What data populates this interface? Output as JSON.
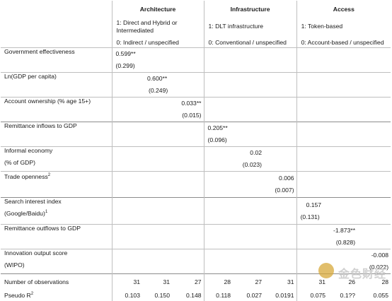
{
  "groups": [
    {
      "title": "Architecture",
      "line1": "1: Direct and Hybrid or Intermediated",
      "line0": "0: Indirect / unspecified"
    },
    {
      "title": "Infrastructure",
      "line1": "1: DLT infrastructure",
      "line0": "0: Conventional / unspecified"
    },
    {
      "title": "Access",
      "line1": "1: Token-based",
      "line0": "0: Account-based / unspecified"
    }
  ],
  "rows": [
    {
      "label": "Government effectiveness",
      "label2": "",
      "coef": "0.599**",
      "se": "(0.299)"
    },
    {
      "label": "Ln(GDP per capita)",
      "label2": "",
      "coef": "0.600**",
      "se": "(0.249)"
    },
    {
      "label": "Account ownership (% age 15+)",
      "label2": "",
      "coef": "0.033**",
      "se": "(0.015)"
    },
    {
      "label": "Remittance inflows to GDP",
      "label2": "",
      "coef": "0.205**",
      "se": "(0.096)"
    },
    {
      "label": "Informal economy",
      "label2": "(% of GDP)",
      "coef": "0.02",
      "se": "(0.023)"
    },
    {
      "label": "Trade openness",
      "label_sup": "2",
      "label2": "",
      "coef": "0.006",
      "se": "(0.007)"
    },
    {
      "label": "Search interest index",
      "label2": "(Google/Baidu)",
      "label2_sup": "1",
      "coef": "0.157",
      "se": "(0.131)"
    },
    {
      "label": "Remittance outflows to GDP",
      "label2": "",
      "coef": "-1.873**",
      "se": "(0.828)"
    },
    {
      "label": "Innovation output score",
      "label2": "(WIPO)",
      "coef": "-0.008",
      "se": "(0.022)"
    }
  ],
  "observations": {
    "label": "Number of observations",
    "values": [
      "31",
      "31",
      "27",
      "28",
      "27",
      "31",
      "31",
      "26",
      "28"
    ]
  },
  "pseudo_r2": {
    "label": "Pseudo R",
    "label_sup": "2",
    "values": [
      "0.103",
      "0.150",
      "0.148",
      "0.118",
      "0.027",
      "0.0191",
      "0.075",
      "0.1??",
      "0.055"
    ]
  },
  "watermark": {
    "text": "金色财经"
  }
}
